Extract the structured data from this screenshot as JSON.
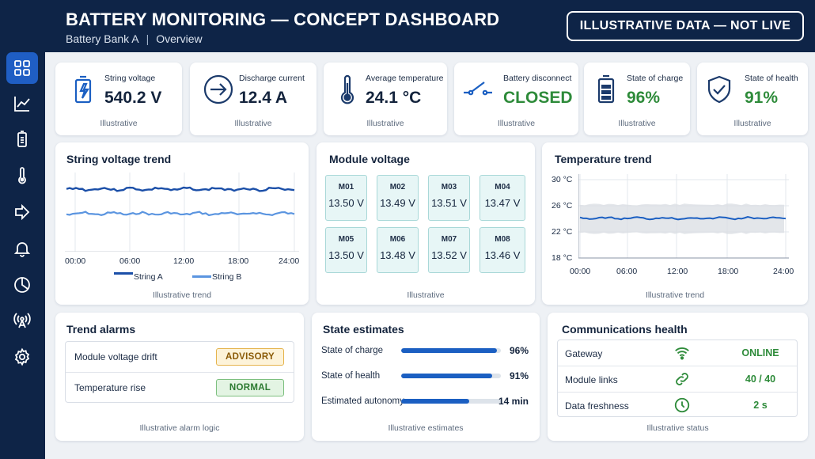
{
  "header": {
    "title": "BATTERY MONITORING — CONCEPT DASHBOARD",
    "subtitle_bank": "Battery Bank A",
    "subtitle_sep": "|",
    "subtitle_view": "Overview",
    "badge": "ILLUSTRATIVE DATA — NOT LIVE"
  },
  "sidebar": {
    "items": [
      {
        "icon": "grid-icon",
        "active": true
      },
      {
        "icon": "trend-chart-icon"
      },
      {
        "icon": "battery-icon"
      },
      {
        "icon": "thermometer-icon"
      },
      {
        "icon": "flow-arrow-icon"
      },
      {
        "icon": "bell-icon"
      },
      {
        "icon": "pie-chart-icon"
      },
      {
        "icon": "antenna-icon"
      },
      {
        "icon": "gear-icon"
      }
    ]
  },
  "kpis": [
    {
      "label": "String voltage",
      "value": "540.2 V",
      "note": "Illustrative",
      "icon": "battery-bolt-icon"
    },
    {
      "label": "Discharge current",
      "value": "12.4 A",
      "note": "Illustrative",
      "icon": "arrow-circle-icon"
    },
    {
      "label": "Average temperature",
      "value": "24.1 °C",
      "note": "Illustrative",
      "icon": "thermometer-icon"
    },
    {
      "label": "Battery disconnect",
      "value": "CLOSED",
      "note": "Illustrative",
      "icon": "switch-icon"
    },
    {
      "label": "State of charge",
      "value": "96%",
      "note": "Illustrative",
      "icon": "battery-level-icon"
    },
    {
      "label": "State of health",
      "value": "91%",
      "note": "Illustrative",
      "icon": "shield-check-icon"
    }
  ],
  "voltage_trend": {
    "title": "String voltage trend",
    "note": "Illustrative trend",
    "x_ticks": [
      "00:00",
      "06:00",
      "12:00",
      "18:00",
      "24:00"
    ],
    "legend": [
      "String A",
      "String B"
    ],
    "colors": {
      "a": "#1b4fa8",
      "b": "#5b95e0"
    }
  },
  "module_voltage": {
    "title": "Module voltage",
    "note": "Illustrative",
    "modules": [
      {
        "name": "M01",
        "value": "13.50 V"
      },
      {
        "name": "M02",
        "value": "13.49 V"
      },
      {
        "name": "M03",
        "value": "13.51 V"
      },
      {
        "name": "M04",
        "value": "13.47 V"
      },
      {
        "name": "M05",
        "value": "13.50 V"
      },
      {
        "name": "M06",
        "value": "13.48 V"
      },
      {
        "name": "M07",
        "value": "13.52 V"
      },
      {
        "name": "M08",
        "value": "13.46 V"
      }
    ]
  },
  "temperature_trend": {
    "title": "Temperature trend",
    "note": "Illustrative trend",
    "y_ticks": [
      "30 °C",
      "26 °C",
      "22 °C",
      "18 °C"
    ],
    "x_ticks": [
      "00:00",
      "06:00",
      "12:00",
      "18:00",
      "24:00"
    ],
    "ylim": [
      18,
      30
    ],
    "band": [
      21.8,
      26.2
    ],
    "level": 24.1
  },
  "trend_alarms": {
    "title": "Trend alarms",
    "note": "Illustrative alarm logic",
    "rows": [
      {
        "label": "Module voltage drift",
        "status": "ADVISORY"
      },
      {
        "label": "Temperature rise",
        "status": "NORMAL"
      }
    ]
  },
  "state_estimates": {
    "title": "State estimates",
    "note": "Illustrative estimates",
    "rows": [
      {
        "label": "State of charge",
        "value": "96%",
        "fill": 0.96
      },
      {
        "label": "State of health",
        "value": "91%",
        "fill": 0.91
      },
      {
        "label": "Estimated autonomy",
        "value": "14 min",
        "fill": 0.68
      }
    ]
  },
  "comms": {
    "title": "Communications health",
    "note": "Illustrative status",
    "rows": [
      {
        "label": "Gateway",
        "value": "ONLINE",
        "icon": "wifi-icon"
      },
      {
        "label": "Module links",
        "value": "40 / 40",
        "icon": "link-icon"
      },
      {
        "label": "Data freshness",
        "value": "2 s",
        "icon": "clock-icon"
      }
    ]
  }
}
